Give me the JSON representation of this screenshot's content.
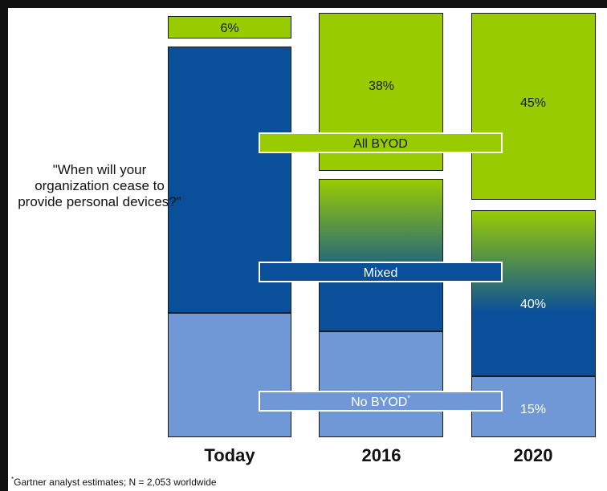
{
  "chart_data": {
    "type": "bar",
    "question": "\"When will your organization cease to provide personal devices?\"",
    "categories": [
      "Today",
      "2016",
      "2020"
    ],
    "segments": [
      {
        "name": "No BYOD",
        "values": [
          null,
          null,
          15
        ],
        "color": "#7098d6"
      },
      {
        "name": "Mixed",
        "values": [
          null,
          null,
          40
        ],
        "color": "#0a4f99"
      },
      {
        "name": "All BYOD",
        "values": [
          6,
          38,
          45
        ],
        "color": "#99cc00"
      }
    ],
    "data_labels": [
      {
        "category": "Today",
        "segment": "All BYOD",
        "text": "6%"
      },
      {
        "category": "2016",
        "segment": "All BYOD",
        "text": "38%"
      },
      {
        "category": "2020",
        "segment": "All BYOD",
        "text": "45%"
      },
      {
        "category": "2020",
        "segment": "Mixed",
        "text": "40%"
      },
      {
        "category": "2020",
        "segment": "No BYOD",
        "text": "15%"
      }
    ],
    "legend": [
      {
        "label": "All BYOD",
        "superscript": "",
        "color": "#99cc00"
      },
      {
        "label": "Mixed",
        "superscript": "",
        "color": "#0a4f99"
      },
      {
        "label": "No BYOD",
        "superscript": "*",
        "color": "#7098d6"
      }
    ],
    "footnote_mark": "*",
    "footnote": "Gartner analyst estimates; N = 2,053 worldwide"
  }
}
